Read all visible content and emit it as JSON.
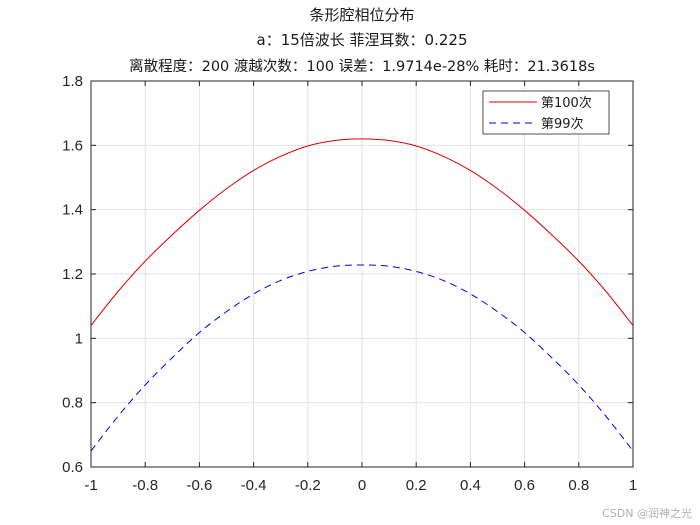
{
  "chart_data": {
    "type": "line",
    "title_lines": [
      "条形腔相位分布",
      "a：15倍波长  菲涅耳数：0.225",
      "离散程度：200  渡越次数：100  误差：1.9714e-28%  耗时：21.3618s"
    ],
    "xlim": [
      -1,
      1
    ],
    "ylim": [
      0.6,
      1.8
    ],
    "xticks": [
      -1,
      -0.8,
      -0.6,
      -0.4,
      -0.2,
      0,
      0.2,
      0.4,
      0.6,
      0.8,
      1
    ],
    "yticks": [
      0.6,
      0.8,
      1,
      1.2,
      1.4,
      1.6,
      1.8
    ],
    "xtick_labels": [
      "-1",
      "-0.8",
      "-0.6",
      "-0.4",
      "-0.2",
      "0",
      "0.2",
      "0.4",
      "0.6",
      "0.8",
      "1"
    ],
    "ytick_labels": [
      "0.6",
      "0.8",
      "1",
      "1.2",
      "1.4",
      "1.6",
      "1.8"
    ],
    "grid": true,
    "legend_position": "top-right",
    "x": [
      -1,
      -0.9,
      -0.8,
      -0.7,
      -0.6,
      -0.5,
      -0.4,
      -0.3,
      -0.2,
      -0.1,
      0,
      0.1,
      0.2,
      0.3,
      0.4,
      0.5,
      0.6,
      0.7,
      0.8,
      0.9,
      1
    ],
    "series": [
      {
        "name": "第100次",
        "color": "#e00000",
        "dash": "solid",
        "values": [
          1.04,
          1.146,
          1.24,
          1.322,
          1.398,
          1.465,
          1.522,
          1.566,
          1.598,
          1.615,
          1.62,
          1.615,
          1.598,
          1.566,
          1.522,
          1.465,
          1.398,
          1.322,
          1.24,
          1.146,
          1.04
        ]
      },
      {
        "name": "第99次",
        "color": "#0000ee",
        "dash": "dashed",
        "values": [
          0.65,
          0.758,
          0.855,
          0.94,
          1.018,
          1.083,
          1.138,
          1.18,
          1.208,
          1.224,
          1.228,
          1.224,
          1.208,
          1.18,
          1.138,
          1.083,
          1.018,
          0.94,
          0.855,
          0.758,
          0.65
        ]
      }
    ]
  },
  "watermark": "CSDN @润神之光"
}
